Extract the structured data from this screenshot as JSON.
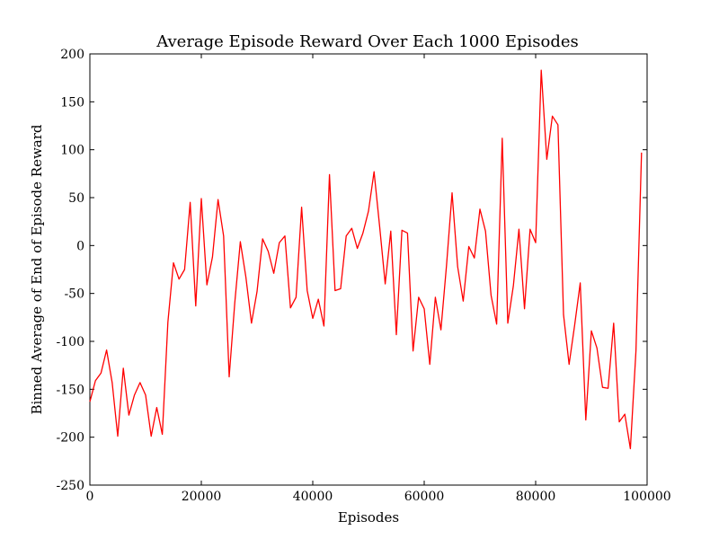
{
  "chart_data": {
    "type": "line",
    "title": "Average Episode Reward Over Each 1000 Episodes",
    "xlabel": "Episodes",
    "ylabel": "Binned Average of End of Episode Reward",
    "xlim": [
      0,
      100000
    ],
    "ylim": [
      -250,
      200
    ],
    "x_ticks": [
      0,
      20000,
      40000,
      60000,
      80000,
      100000
    ],
    "y_ticks": [
      -250,
      -200,
      -150,
      -100,
      -50,
      0,
      50,
      100,
      150,
      200
    ],
    "grid": false,
    "legend": "none",
    "series": [
      {
        "color": "#ff0000",
        "x": [
          0,
          1000,
          2000,
          3000,
          4000,
          5000,
          6000,
          7000,
          8000,
          9000,
          10000,
          11000,
          12000,
          13000,
          14000,
          15000,
          16000,
          17000,
          18000,
          19000,
          20000,
          21000,
          22000,
          23000,
          24000,
          25000,
          26000,
          27000,
          28000,
          29000,
          30000,
          31000,
          32000,
          33000,
          34000,
          35000,
          36000,
          37000,
          38000,
          39000,
          40000,
          41000,
          42000,
          43000,
          44000,
          45000,
          46000,
          47000,
          48000,
          49000,
          50000,
          51000,
          52000,
          53000,
          54000,
          55000,
          56000,
          57000,
          58000,
          59000,
          60000,
          61000,
          62000,
          63000,
          64000,
          65000,
          66000,
          67000,
          68000,
          69000,
          70000,
          71000,
          72000,
          73000,
          74000,
          75000,
          76000,
          77000,
          78000,
          79000,
          80000,
          81000,
          82000,
          83000,
          84000,
          85000,
          86000,
          87000,
          88000,
          89000,
          90000,
          91000,
          92000,
          93000,
          94000,
          95000,
          96000,
          97000,
          98000,
          99000
        ],
        "y": [
          -163,
          -141,
          -133,
          -109,
          -143,
          -199,
          -128,
          -177,
          -156,
          -143,
          -156,
          -199,
          -169,
          -197,
          -80,
          -18,
          -35,
          -25,
          45,
          -63,
          49,
          -41,
          -12,
          48,
          10,
          -137,
          -60,
          4,
          -33,
          -81,
          -48,
          7,
          -6,
          -29,
          3,
          10,
          -65,
          -54,
          40,
          -47,
          -76,
          -56,
          -84,
          74,
          -47,
          -45,
          10,
          18,
          -3,
          13,
          36,
          77,
          20,
          -40,
          15,
          -93,
          16,
          13,
          -110,
          -54,
          -66,
          -124,
          -54,
          -88,
          -21,
          55,
          -22,
          -58,
          -1,
          -13,
          38,
          15,
          -52,
          -82,
          112,
          -81,
          -42,
          17,
          -66,
          17,
          3,
          183,
          90,
          135,
          126,
          -72,
          -124,
          -83,
          -39,
          -182,
          -89,
          -107,
          -148,
          -149,
          -81,
          -184,
          -176,
          -212,
          -110,
          97
        ]
      }
    ]
  }
}
